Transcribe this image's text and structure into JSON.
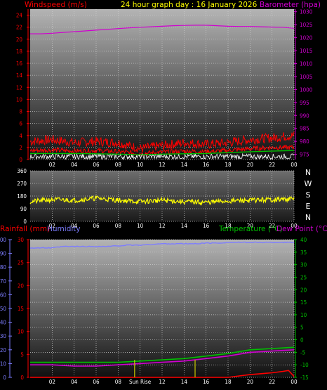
{
  "title": "24 hour graph day : 16 January 2026",
  "colors": {
    "windspeed": "#ff0000",
    "gust": "#ff0000",
    "barometer": "#d000d0",
    "direction": "#ffff00",
    "rainfall": "#ff0000",
    "humidity": "#7d7dff",
    "temperature": "#00c000",
    "dewpoint": "#d000d0",
    "sunrise": "#c8c800"
  },
  "chart_data": [
    {
      "type": "line",
      "name": "wind-barometer",
      "left_label": "Windspeed (m/s)",
      "right_label": "Barometer (hpa)",
      "x_ticks": [
        "02",
        "04",
        "06",
        "08",
        "10",
        "12",
        "14",
        "16",
        "18",
        "20",
        "22",
        "00"
      ],
      "y_left_ticks": [
        0,
        2,
        4,
        6,
        8,
        10,
        12,
        14,
        16,
        18,
        20,
        22,
        24
      ],
      "y_left_lim": [
        0,
        25
      ],
      "y_right_ticks": [
        975,
        980,
        985,
        990,
        995,
        1000,
        1005,
        1010,
        1015,
        1020,
        1025,
        1030
      ],
      "y_right_lim": [
        973,
        1031
      ],
      "x_lim": [
        0,
        24
      ],
      "series": [
        {
          "key": "barometer",
          "x": [
            0,
            1,
            2,
            3,
            4,
            5,
            6,
            7,
            8,
            9,
            10,
            11,
            12,
            13,
            14,
            15,
            16,
            17,
            18,
            19,
            20,
            21,
            22,
            23,
            24
          ],
          "y": [
            1021.5,
            1021.5,
            1021.7,
            1022.0,
            1022.3,
            1022.6,
            1022.9,
            1023.2,
            1023.5,
            1023.8,
            1024.0,
            1024.2,
            1024.4,
            1024.6,
            1024.7,
            1024.8,
            1024.8,
            1024.6,
            1024.4,
            1024.3,
            1024.3,
            1024.2,
            1024.1,
            1024.0,
            1023.6
          ]
        },
        {
          "key": "gust",
          "x": [
            0,
            2,
            4,
            6,
            8,
            10,
            12,
            14,
            16,
            18,
            20,
            22,
            24
          ],
          "y": [
            3.0,
            3.3,
            2.8,
            3.0,
            2.8,
            1.8,
            2.3,
            2.8,
            2.5,
            2.8,
            3.3,
            3.6,
            4.0
          ]
        },
        {
          "key": "windspeed",
          "x": [
            0,
            2,
            4,
            6,
            8,
            10,
            12,
            14,
            16,
            18,
            20,
            22,
            24
          ],
          "y": [
            1.5,
            1.6,
            1.4,
            1.5,
            1.3,
            1.0,
            1.2,
            1.4,
            1.3,
            1.5,
            1.8,
            2.0,
            2.0
          ]
        },
        {
          "key": "temperature",
          "x": [
            0,
            4,
            8,
            10,
            12,
            16,
            20,
            24
          ],
          "y": [
            1.0,
            1.0,
            0.9,
            0.8,
            0.9,
            1.0,
            1.3,
            1.5
          ]
        }
      ]
    },
    {
      "type": "line",
      "name": "wind-direction",
      "x_ticks": [
        "02",
        "04",
        "06",
        "08",
        "10",
        "12",
        "14",
        "16",
        "18",
        "20",
        "22",
        "00"
      ],
      "y_ticks": [
        0,
        90,
        180,
        270,
        360
      ],
      "y_lim": [
        0,
        360
      ],
      "x_lim": [
        0,
        24
      ],
      "compass": [
        "N",
        "W",
        "S",
        "E",
        "N"
      ],
      "series": [
        {
          "key": "direction",
          "x": [
            0,
            2,
            4,
            6,
            8,
            10,
            12,
            14,
            16,
            18,
            20,
            22,
            24
          ],
          "y": [
            140,
            155,
            150,
            165,
            150,
            140,
            150,
            140,
            135,
            145,
            150,
            155,
            160
          ]
        }
      ]
    },
    {
      "type": "line",
      "name": "rain-humidity-temperature",
      "rain_label": "Rainfall (mm)",
      "humidity_label": "Humidity",
      "temp_label": "Temperature (°C)",
      "dew_label": "Dew Point (°C)",
      "sunrise_label": "Sun Rise",
      "x_ticks": [
        "02",
        "04",
        "06",
        "08",
        "10",
        "12",
        "14",
        "16",
        "18",
        "20",
        "22",
        "00"
      ],
      "humidity_ticks": [
        0,
        10,
        20,
        30,
        40,
        50,
        60,
        70,
        80,
        90,
        100
      ],
      "humidity_lim": [
        0,
        100
      ],
      "rain_ticks": [
        0,
        5,
        10,
        15,
        20,
        25,
        30
      ],
      "rain_lim": [
        0,
        30
      ],
      "temp_ticks": [
        -15,
        -10,
        -5,
        0,
        5,
        10,
        15,
        20,
        25,
        30,
        35,
        40
      ],
      "temp_lim": [
        -15,
        40
      ],
      "x_lim": [
        0,
        24
      ],
      "sunrise_hour": 9.5,
      "marker_hour": 15.0,
      "series": [
        {
          "key": "humidity",
          "x": [
            0,
            1,
            2,
            3,
            4,
            5,
            6,
            7,
            8,
            9,
            10,
            11,
            12,
            13,
            14,
            15,
            16,
            17,
            18,
            19,
            20,
            21,
            22,
            23,
            24
          ],
          "y": [
            94,
            94,
            94,
            95,
            95,
            95,
            95,
            95,
            95.5,
            96,
            96,
            96.5,
            97,
            97,
            97,
            97,
            97.5,
            97.5,
            98,
            98,
            98,
            98,
            98,
            98,
            98
          ]
        },
        {
          "key": "temperature",
          "x": [
            0,
            2,
            4,
            6,
            8,
            10,
            12,
            14,
            16,
            18,
            20,
            22,
            24
          ],
          "y": [
            -9,
            -9,
            -9,
            -9,
            -9,
            -8.5,
            -8,
            -7.5,
            -6.5,
            -5.5,
            -4,
            -3.5,
            -3
          ]
        },
        {
          "key": "dewpoint",
          "x": [
            0,
            2,
            4,
            6,
            8,
            10,
            12,
            14,
            16,
            18,
            20,
            22,
            24
          ],
          "y": [
            -10,
            -10,
            -10.5,
            -10.5,
            -10,
            -9.5,
            -9,
            -8.5,
            -7.5,
            -6.5,
            -5,
            -4.5,
            -4
          ]
        },
        {
          "key": "rainfall",
          "x": [
            0,
            18,
            19,
            20,
            21,
            22,
            23,
            23.5,
            24
          ],
          "y": [
            0,
            0,
            0.3,
            0.6,
            0.8,
            1.0,
            1.3,
            1.5,
            0.2
          ]
        }
      ]
    }
  ]
}
